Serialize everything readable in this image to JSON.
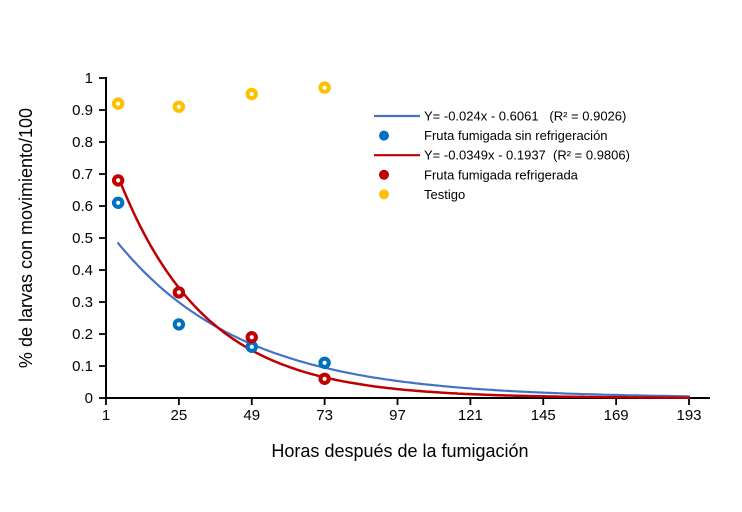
{
  "figure": {
    "background": "#ffffff"
  },
  "chart_data": {
    "type": "scatter",
    "title": "",
    "xlabel": "Horas después de la fumigación",
    "ylabel": "% de larvas con movimiento/100",
    "xlim": [
      1,
      200
    ],
    "ylim": [
      0,
      1
    ],
    "x_ticks": [
      1,
      25,
      49,
      73,
      97,
      121,
      145,
      169,
      193
    ],
    "y_ticks": [
      0,
      0.1,
      0.2,
      0.3,
      0.4,
      0.5,
      0.6,
      0.7,
      0.8,
      0.9,
      1
    ],
    "grid": false,
    "axis_color": "#000000",
    "series": [
      {
        "name": "Fruta fumigada sin refrigeración",
        "color": "#0070C0",
        "marker": "donut",
        "x": [
          5,
          25,
          49,
          73
        ],
        "y": [
          0.61,
          0.23,
          0.16,
          0.11
        ]
      },
      {
        "name": "Fruta fumigada refrigerada",
        "color": "#C00000",
        "marker": "donut",
        "x": [
          5,
          25,
          49,
          73
        ],
        "y": [
          0.68,
          0.33,
          0.19,
          0.06
        ]
      },
      {
        "name": "Testigo",
        "color": "#FFC000",
        "marker": "donut",
        "x": [
          5,
          25,
          49,
          73
        ],
        "y": [
          0.92,
          0.91,
          0.95,
          0.97
        ]
      }
    ],
    "trendlines": [
      {
        "label": "Y= -0.024x - 0.6061   (R² = 0.9026)",
        "model": "exponential",
        "slope": -0.024,
        "intercept": -0.6061,
        "r2": 0.9026,
        "color": "#4472C4",
        "width": 2.2,
        "x_range": [
          5,
          193
        ]
      },
      {
        "label": "Y= -0.0349x - 0.1937  (R² = 0.9806)",
        "model": "exponential",
        "slope": -0.0349,
        "intercept": -0.1937,
        "r2": 0.9806,
        "color": "#C00000",
        "width": 2.5,
        "x_range": [
          5,
          193
        ]
      }
    ],
    "legend": {
      "position": "inside-top-right",
      "entries": [
        {
          "marker": "line",
          "color": "#4472C4",
          "label": "Y= -0.024x - 0.6061   (R² = 0.9026)"
        },
        {
          "marker": "dot",
          "color": "#0070C0",
          "label": "Fruta fumigada sin refrigeración"
        },
        {
          "marker": "line",
          "color": "#C00000",
          "label": "Y= -0.0349x - 0.1937  (R² = 0.9806)"
        },
        {
          "marker": "dot",
          "color": "#C00000",
          "label": "Fruta fumigada refrigerada"
        },
        {
          "marker": "dot",
          "color": "#FFC000",
          "label": "Testigo"
        }
      ]
    }
  }
}
